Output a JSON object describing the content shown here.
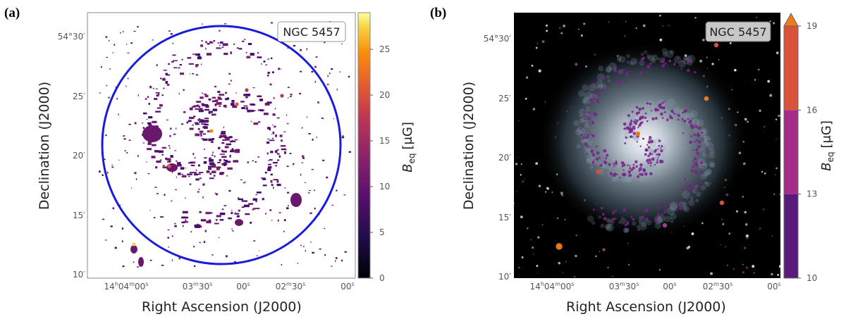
{
  "figure": {
    "panel_a_label": "(a)",
    "panel_b_label": "(b)"
  },
  "colors": {
    "ring": "#1a1adb",
    "purple": "#5a1a7a",
    "orange": "#f07a1a",
    "red": "#d9533a"
  },
  "chart_data": [
    {
      "type": "heatmap",
      "panel": "(a)",
      "badge": "NGC 5457",
      "xlabel": "Right Ascension (J2000)",
      "ylabel": "Declination (J2000)",
      "x_ticks": [
        "14h04m00s",
        "03m30s",
        "00s",
        "02m30s",
        "00s"
      ],
      "y_ticks": [
        "10′",
        "15′",
        "20′",
        "25′",
        "54°30′"
      ],
      "colorbar": {
        "label": "B_eq [μG]",
        "label_main": "B",
        "label_sub": "eq",
        "label_unit": "[μG]",
        "cmap": "inferno",
        "range": [
          0,
          29
        ],
        "ticks": [
          "0",
          "5",
          "10",
          "15",
          "20",
          "25"
        ],
        "tick_values": [
          0,
          5,
          10,
          15,
          20,
          25
        ]
      },
      "annotation": "blue circle marking galaxy extent"
    },
    {
      "type": "heatmap",
      "panel": "(b)",
      "badge": "NGC 5457",
      "xlabel": "Right Ascension (J2000)",
      "ylabel": "Declination (J2000)",
      "x_ticks": [
        "14h04m00s",
        "03m30s",
        "00s",
        "02m30s",
        "00s"
      ],
      "y_ticks": [
        "10′",
        "15′",
        "20′",
        "25′",
        "54°30′"
      ],
      "colorbar": {
        "label": "B_eq [μG]",
        "label_main": "B",
        "label_sub": "eq",
        "label_unit": "[μG]",
        "cmap": "discrete",
        "range": [
          10,
          19
        ],
        "ticks": [
          "10",
          "13",
          "16",
          "19"
        ],
        "tick_values": [
          10,
          13,
          16,
          19
        ],
        "bins": [
          {
            "from": 10,
            "to": 13,
            "color": "#5a1a7a"
          },
          {
            "from": 13,
            "to": 16,
            "color": "#a52c86"
          },
          {
            "from": 16,
            "to": 19,
            "color": "#d9533a"
          }
        ],
        "extend_color": "#f07a1a"
      },
      "background": "optical image of spiral galaxy"
    }
  ]
}
